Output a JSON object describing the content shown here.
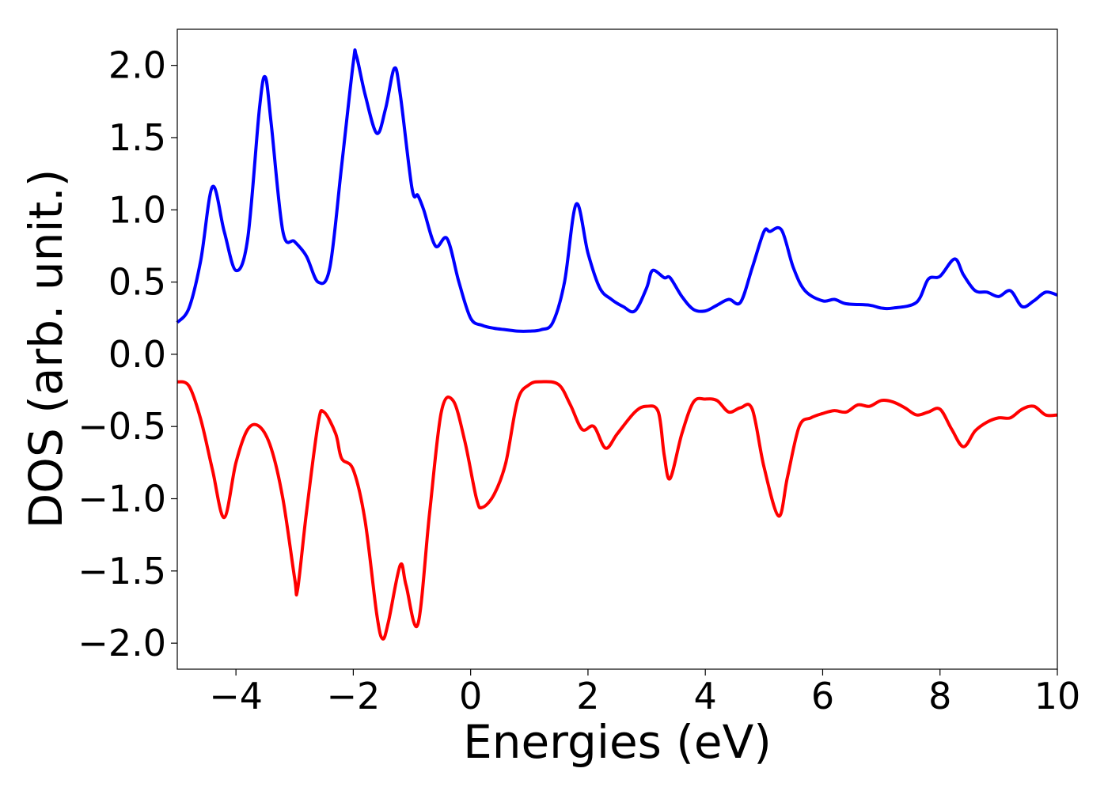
{
  "chart_data": {
    "type": "line",
    "title": "",
    "xlabel": "Energies (eV)",
    "ylabel": "DOS (arb. unit.)",
    "xlim": [
      -5,
      10
    ],
    "ylim": [
      -2.18,
      2.25
    ],
    "grid": false,
    "legend": "none",
    "xticks": [
      {
        "value": -4,
        "label": "−4"
      },
      {
        "value": -2,
        "label": "−2"
      },
      {
        "value": 0,
        "label": "0"
      },
      {
        "value": 2,
        "label": "2"
      },
      {
        "value": 4,
        "label": "4"
      },
      {
        "value": 6,
        "label": "6"
      },
      {
        "value": 8,
        "label": "8"
      },
      {
        "value": 10,
        "label": "10"
      }
    ],
    "yticks": [
      {
        "value": 2.0,
        "label": "2.0"
      },
      {
        "value": 1.5,
        "label": "1.5"
      },
      {
        "value": 1.0,
        "label": "1.0"
      },
      {
        "value": 0.5,
        "label": "0.5"
      },
      {
        "value": 0.0,
        "label": "0.0"
      },
      {
        "value": -0.5,
        "label": "−0.5"
      },
      {
        "value": -1.0,
        "label": "−1.0"
      },
      {
        "value": -1.5,
        "label": "−1.5"
      },
      {
        "value": -2.0,
        "label": "−2.0"
      }
    ],
    "series": [
      {
        "color": "#0000ff",
        "points": [
          [
            -5.0,
            0.22
          ],
          [
            -4.8,
            0.32
          ],
          [
            -4.6,
            0.65
          ],
          [
            -4.4,
            1.16
          ],
          [
            -4.2,
            0.85
          ],
          [
            -4.0,
            0.58
          ],
          [
            -3.8,
            0.8
          ],
          [
            -3.6,
            1.7
          ],
          [
            -3.5,
            1.92
          ],
          [
            -3.4,
            1.6
          ],
          [
            -3.2,
            0.85
          ],
          [
            -3.0,
            0.78
          ],
          [
            -2.8,
            0.68
          ],
          [
            -2.6,
            0.5
          ],
          [
            -2.4,
            0.6
          ],
          [
            -2.2,
            1.3
          ],
          [
            -2.0,
            2.02
          ],
          [
            -1.95,
            2.07
          ],
          [
            -1.8,
            1.8
          ],
          [
            -1.6,
            1.53
          ],
          [
            -1.45,
            1.7
          ],
          [
            -1.3,
            1.98
          ],
          [
            -1.2,
            1.8
          ],
          [
            -1.0,
            1.15
          ],
          [
            -0.9,
            1.1
          ],
          [
            -0.8,
            1.0
          ],
          [
            -0.6,
            0.75
          ],
          [
            -0.4,
            0.8
          ],
          [
            -0.2,
            0.5
          ],
          [
            0.0,
            0.25
          ],
          [
            0.2,
            0.2
          ],
          [
            0.4,
            0.18
          ],
          [
            0.6,
            0.17
          ],
          [
            0.8,
            0.16
          ],
          [
            1.0,
            0.16
          ],
          [
            1.2,
            0.17
          ],
          [
            1.4,
            0.22
          ],
          [
            1.6,
            0.5
          ],
          [
            1.8,
            1.04
          ],
          [
            2.0,
            0.7
          ],
          [
            2.2,
            0.46
          ],
          [
            2.4,
            0.38
          ],
          [
            2.6,
            0.33
          ],
          [
            2.8,
            0.3
          ],
          [
            3.0,
            0.46
          ],
          [
            3.1,
            0.58
          ],
          [
            3.3,
            0.53
          ],
          [
            3.4,
            0.53
          ],
          [
            3.6,
            0.4
          ],
          [
            3.8,
            0.31
          ],
          [
            4.0,
            0.3
          ],
          [
            4.2,
            0.34
          ],
          [
            4.4,
            0.38
          ],
          [
            4.6,
            0.36
          ],
          [
            4.8,
            0.6
          ],
          [
            5.0,
            0.85
          ],
          [
            5.1,
            0.85
          ],
          [
            5.3,
            0.86
          ],
          [
            5.5,
            0.6
          ],
          [
            5.7,
            0.44
          ],
          [
            6.0,
            0.37
          ],
          [
            6.2,
            0.38
          ],
          [
            6.4,
            0.35
          ],
          [
            6.8,
            0.34
          ],
          [
            7.0,
            0.32
          ],
          [
            7.2,
            0.32
          ],
          [
            7.6,
            0.36
          ],
          [
            7.8,
            0.52
          ],
          [
            8.0,
            0.54
          ],
          [
            8.25,
            0.66
          ],
          [
            8.4,
            0.55
          ],
          [
            8.6,
            0.44
          ],
          [
            8.8,
            0.43
          ],
          [
            9.0,
            0.4
          ],
          [
            9.2,
            0.44
          ],
          [
            9.4,
            0.33
          ],
          [
            9.6,
            0.37
          ],
          [
            9.8,
            0.43
          ],
          [
            10.0,
            0.41
          ]
        ]
      },
      {
        "color": "#ff0000",
        "points": [
          [
            -5.0,
            -0.19
          ],
          [
            -4.8,
            -0.22
          ],
          [
            -4.6,
            -0.45
          ],
          [
            -4.4,
            -0.8
          ],
          [
            -4.2,
            -1.13
          ],
          [
            -4.0,
            -0.75
          ],
          [
            -3.8,
            -0.52
          ],
          [
            -3.6,
            -0.5
          ],
          [
            -3.4,
            -0.65
          ],
          [
            -3.2,
            -1.0
          ],
          [
            -3.0,
            -1.55
          ],
          [
            -2.95,
            -1.63
          ],
          [
            -2.8,
            -1.1
          ],
          [
            -2.6,
            -0.48
          ],
          [
            -2.5,
            -0.4
          ],
          [
            -2.3,
            -0.55
          ],
          [
            -2.2,
            -0.72
          ],
          [
            -2.0,
            -0.8
          ],
          [
            -1.8,
            -1.15
          ],
          [
            -1.6,
            -1.8
          ],
          [
            -1.5,
            -1.97
          ],
          [
            -1.4,
            -1.85
          ],
          [
            -1.2,
            -1.46
          ],
          [
            -1.1,
            -1.6
          ],
          [
            -0.9,
            -1.87
          ],
          [
            -0.7,
            -1.1
          ],
          [
            -0.5,
            -0.4
          ],
          [
            -0.3,
            -0.32
          ],
          [
            -0.1,
            -0.6
          ],
          [
            0.1,
            -1.0
          ],
          [
            0.2,
            -1.06
          ],
          [
            0.4,
            -0.97
          ],
          [
            0.6,
            -0.75
          ],
          [
            0.8,
            -0.32
          ],
          [
            1.0,
            -0.21
          ],
          [
            1.2,
            -0.19
          ],
          [
            1.5,
            -0.21
          ],
          [
            1.7,
            -0.35
          ],
          [
            1.9,
            -0.52
          ],
          [
            2.1,
            -0.5
          ],
          [
            2.3,
            -0.65
          ],
          [
            2.5,
            -0.55
          ],
          [
            2.8,
            -0.4
          ],
          [
            3.0,
            -0.36
          ],
          [
            3.2,
            -0.4
          ],
          [
            3.3,
            -0.7
          ],
          [
            3.4,
            -0.86
          ],
          [
            3.6,
            -0.55
          ],
          [
            3.8,
            -0.33
          ],
          [
            4.0,
            -0.31
          ],
          [
            4.2,
            -0.32
          ],
          [
            4.4,
            -0.4
          ],
          [
            4.6,
            -0.37
          ],
          [
            4.8,
            -0.38
          ],
          [
            5.0,
            -0.78
          ],
          [
            5.25,
            -1.12
          ],
          [
            5.4,
            -0.85
          ],
          [
            5.6,
            -0.5
          ],
          [
            5.8,
            -0.44
          ],
          [
            6.0,
            -0.41
          ],
          [
            6.2,
            -0.39
          ],
          [
            6.4,
            -0.4
          ],
          [
            6.6,
            -0.35
          ],
          [
            6.8,
            -0.36
          ],
          [
            7.0,
            -0.32
          ],
          [
            7.2,
            -0.33
          ],
          [
            7.4,
            -0.37
          ],
          [
            7.6,
            -0.42
          ],
          [
            7.8,
            -0.4
          ],
          [
            8.0,
            -0.38
          ],
          [
            8.2,
            -0.52
          ],
          [
            8.4,
            -0.64
          ],
          [
            8.6,
            -0.53
          ],
          [
            8.8,
            -0.47
          ],
          [
            9.0,
            -0.44
          ],
          [
            9.2,
            -0.44
          ],
          [
            9.4,
            -0.38
          ],
          [
            9.6,
            -0.36
          ],
          [
            9.8,
            -0.42
          ],
          [
            10.0,
            -0.42
          ]
        ]
      }
    ]
  }
}
